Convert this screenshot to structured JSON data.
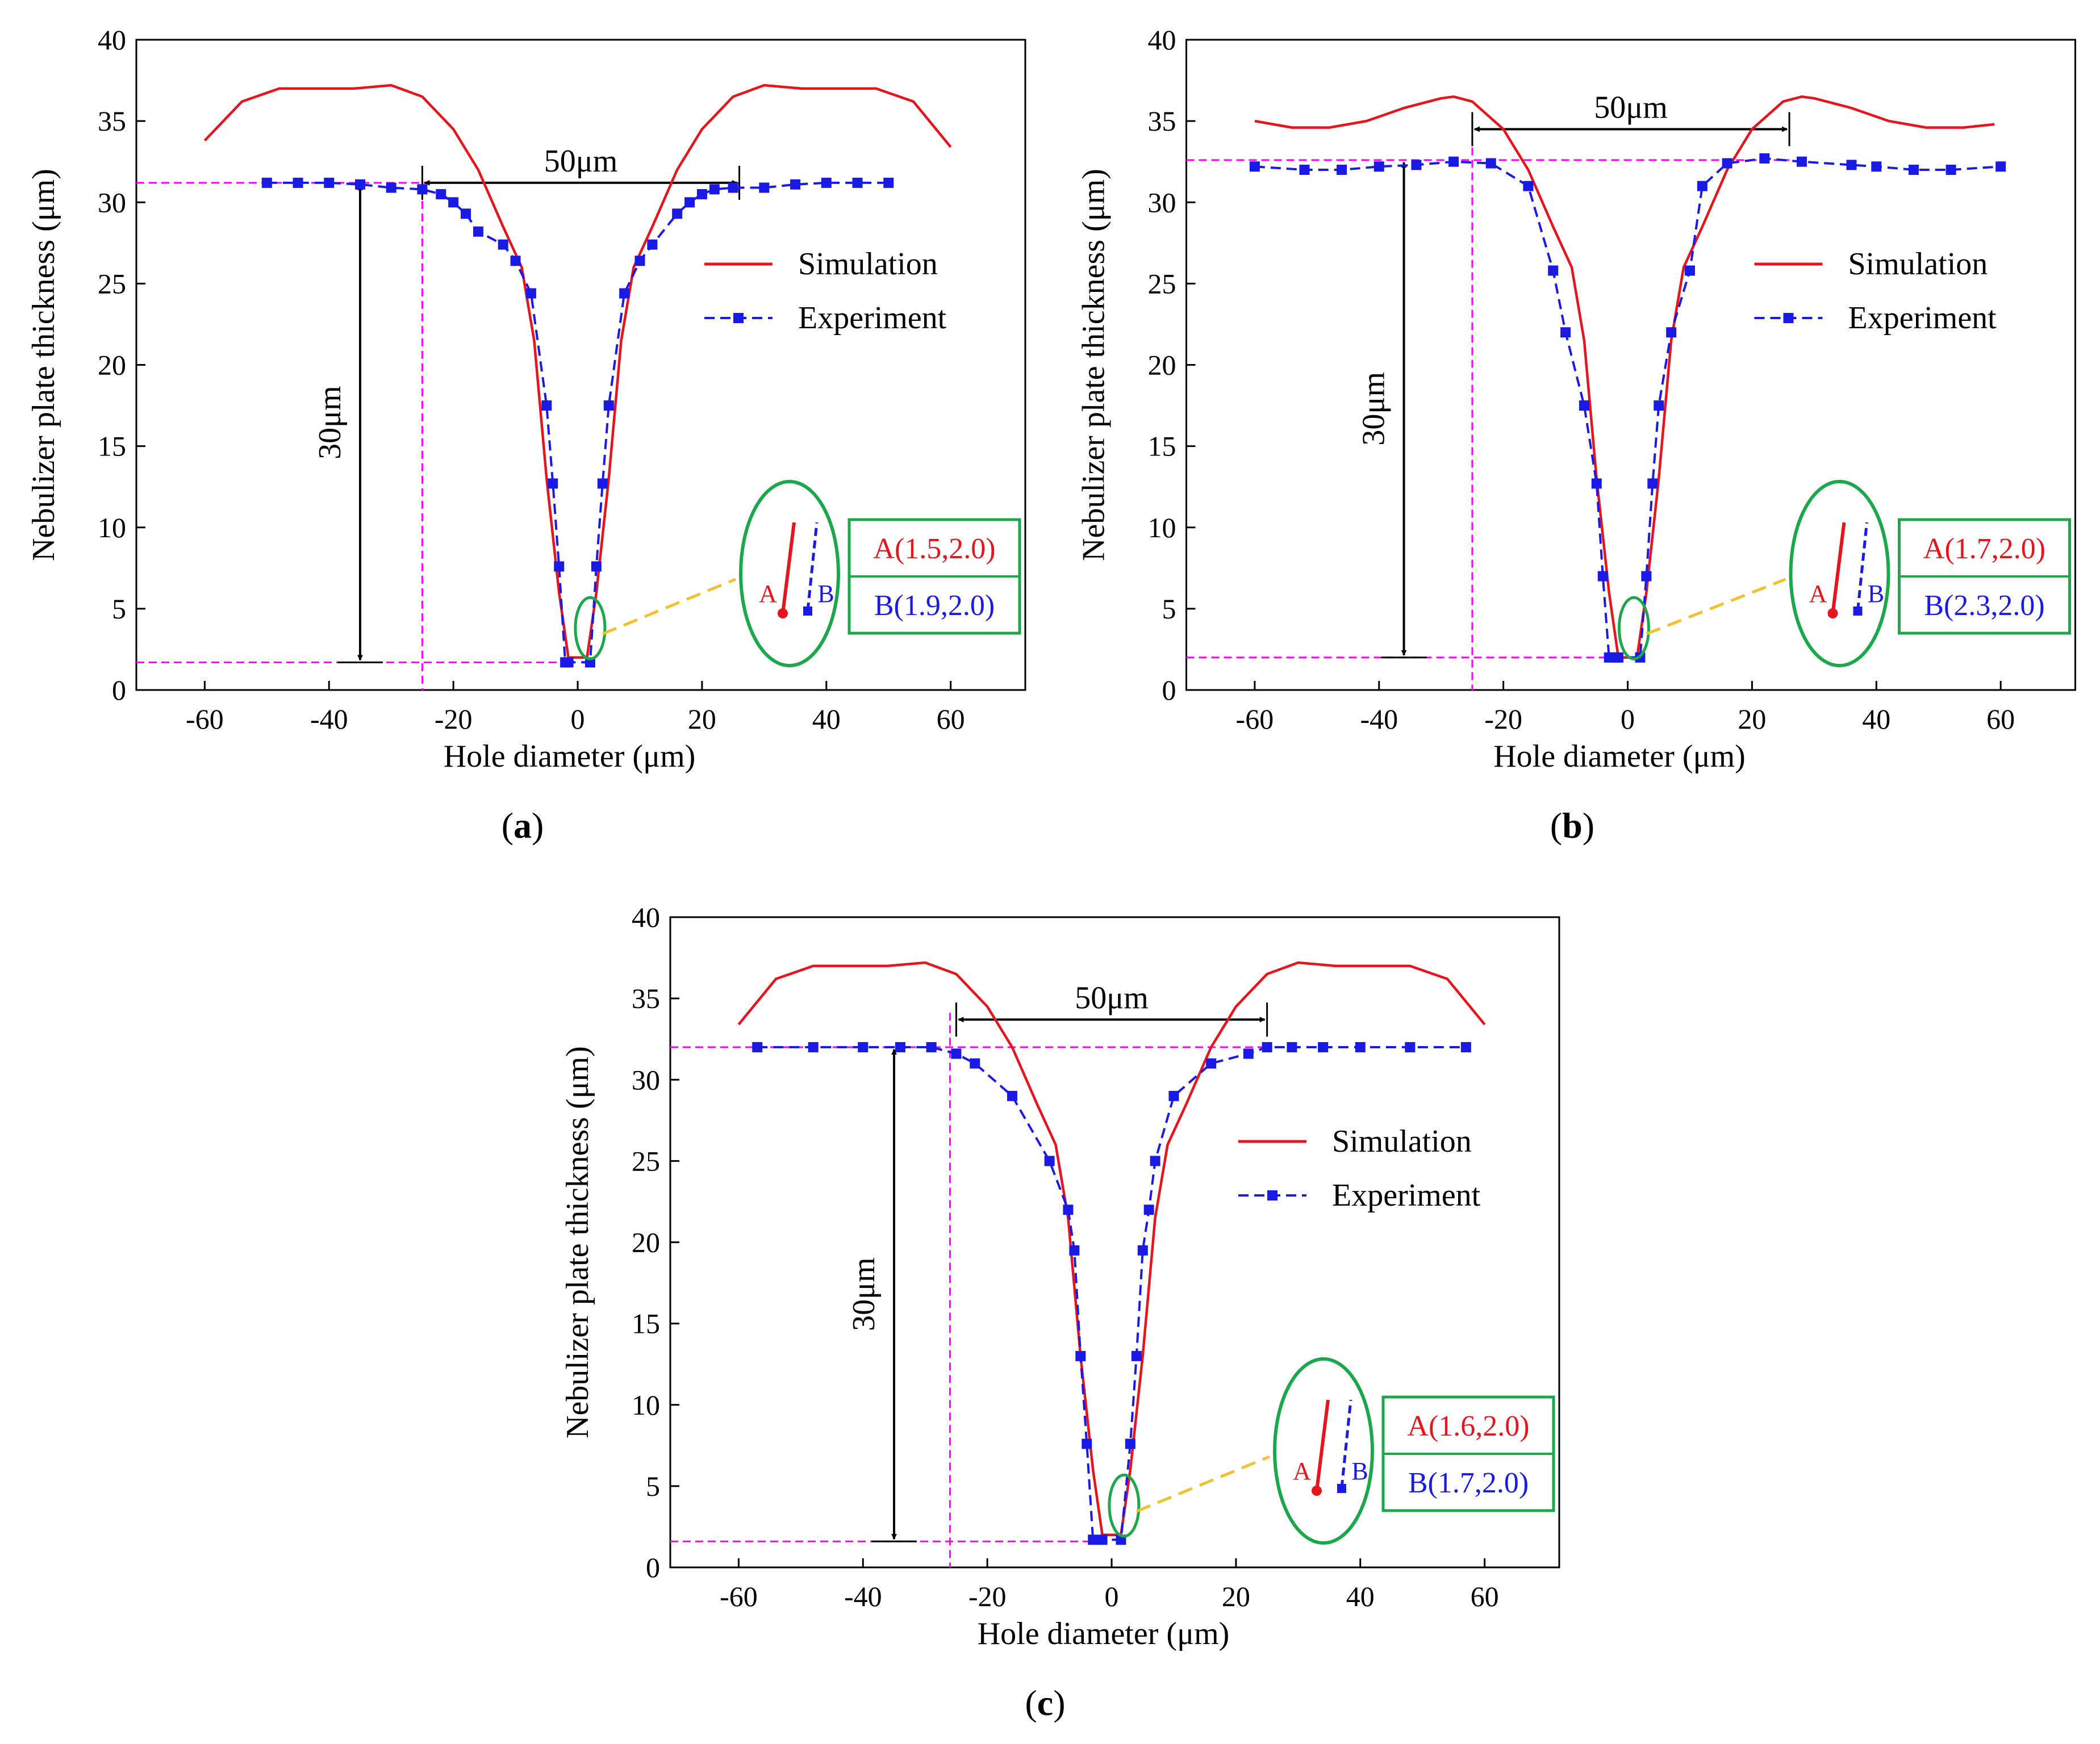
{
  "colors": {
    "simulation": "#e8141c",
    "experiment": "#1a1ae6",
    "guide": "#ff00ff",
    "highlight": "#1aa84a",
    "connector": "#f2c12e",
    "axis": "#000000"
  },
  "icons": {
    "double_arrow": "double-headed-arrow-icon",
    "zoom_ellipse": "zoom-ellipse-icon"
  },
  "chart_data": [
    {
      "id": "a",
      "type": "line",
      "caption": "(a)",
      "caption_prefix": "(",
      "caption_letter": "a",
      "caption_suffix": ")",
      "xlabel": "Hole diameter (μm)",
      "ylabel": "Nebulizer plate thickness (μm)",
      "xlim": [
        -71,
        72
      ],
      "ylim": [
        0,
        40
      ],
      "xticks": [
        -60,
        -40,
        -20,
        0,
        20,
        40,
        60
      ],
      "yticks": [
        0,
        5,
        10,
        15,
        20,
        25,
        30,
        35,
        40
      ],
      "grid": false,
      "legend": {
        "position": "right",
        "simulation": "Simulation",
        "experiment": "Experiment"
      },
      "series": [
        {
          "name": "Simulation",
          "style": "solid",
          "x": [
            -60,
            -54,
            -48,
            -42,
            -36,
            -30,
            -25,
            -20,
            -16,
            -12,
            -9,
            -7,
            -5,
            -3,
            -1.5,
            0,
            1.5,
            3,
            5,
            7,
            9,
            12,
            16,
            20,
            25,
            30,
            36,
            42,
            48,
            54,
            60
          ],
          "y": [
            33.8,
            36.2,
            37,
            37,
            37,
            37.2,
            36.5,
            34.5,
            32,
            28.5,
            26,
            21.5,
            13,
            6,
            2,
            2,
            2,
            6,
            13,
            21.5,
            26,
            28.5,
            32,
            34.5,
            36.5,
            37.2,
            37,
            37,
            37,
            36.2,
            33.4
          ]
        },
        {
          "name": "Experiment",
          "style": "dashed",
          "x": [
            -50,
            -45,
            -40,
            -35,
            -30,
            -25,
            -22,
            -20,
            -18,
            -16,
            -12,
            -10,
            -7.5,
            -5,
            -4,
            -3,
            -2,
            -1.5,
            2,
            3,
            4,
            5,
            7.5,
            10,
            12,
            16,
            18,
            20,
            22,
            25,
            30,
            35,
            40,
            45,
            50
          ],
          "y": [
            31.2,
            31.2,
            31.2,
            31.1,
            30.9,
            30.8,
            30.5,
            30,
            29.3,
            28.2,
            27.4,
            26.4,
            24.4,
            17.5,
            12.7,
            7.6,
            1.7,
            1.7,
            1.7,
            7.6,
            12.7,
            17.5,
            24.4,
            26.4,
            27.4,
            29.3,
            30,
            30.5,
            30.8,
            30.9,
            30.9,
            31.1,
            31.2,
            31.2,
            31.2
          ]
        }
      ],
      "guides": {
        "h_top": 31.2,
        "h_bottom": 1.7,
        "v_x": -25,
        "arrow_x": -35,
        "span_x": [
          -25,
          26
        ],
        "span_y": 31.2
      },
      "annotations": {
        "vertical": "30μm",
        "horizontal": "50μm"
      },
      "zoom": {
        "x": 2,
        "y": 3.8,
        "label_a": "A",
        "label_b": "B"
      },
      "table": {
        "a": "A(1.5,2.0)",
        "b": "B(1.9,2.0)"
      }
    },
    {
      "id": "b",
      "type": "line",
      "caption": "(b)",
      "caption_prefix": "(",
      "caption_letter": "b",
      "caption_suffix": ")",
      "xlabel": "Hole diameter (μm)",
      "ylabel": "Nebulizer plate thickness (μm)",
      "xlim": [
        -71,
        72
      ],
      "ylim": [
        0,
        40
      ],
      "xticks": [
        -60,
        -40,
        -20,
        0,
        20,
        40,
        60
      ],
      "yticks": [
        0,
        5,
        10,
        15,
        20,
        25,
        30,
        35,
        40
      ],
      "grid": false,
      "legend": {
        "position": "right",
        "simulation": "Simulation",
        "experiment": "Experiment"
      },
      "series": [
        {
          "name": "Simulation",
          "style": "solid",
          "x": [
            -60,
            -54,
            -48,
            -42,
            -36,
            -30,
            -28,
            -25,
            -20,
            -16,
            -12,
            -9,
            -7,
            -5,
            -3,
            -1.5,
            0,
            1.5,
            3,
            5,
            7,
            9,
            12,
            16,
            20,
            25,
            28,
            30,
            36,
            42,
            48,
            54,
            59
          ],
          "y": [
            35,
            34.6,
            34.6,
            35,
            35.8,
            36.4,
            36.5,
            36.2,
            34.5,
            32,
            28.5,
            26,
            21.5,
            13,
            6,
            2,
            2,
            2,
            6,
            13,
            21.5,
            26,
            28.5,
            32,
            34.5,
            36.2,
            36.5,
            36.4,
            35.8,
            35,
            34.6,
            34.6,
            34.8
          ]
        },
        {
          "name": "Experiment",
          "style": "dashed",
          "x": [
            -60,
            -52,
            -46,
            -40,
            -34,
            -28,
            -22,
            -16,
            -12,
            -10,
            -7,
            -5,
            -4,
            -3,
            -2,
            -1.5,
            2,
            3,
            4,
            5,
            7,
            10,
            12,
            16,
            22,
            28,
            36,
            40,
            46,
            52,
            60
          ],
          "y": [
            32.2,
            32,
            32,
            32.2,
            32.3,
            32.5,
            32.4,
            31,
            25.8,
            22,
            17.5,
            12.7,
            7,
            2,
            2,
            2,
            2,
            7,
            12.7,
            17.5,
            22,
            25.8,
            31,
            32.4,
            32.7,
            32.5,
            32.3,
            32.2,
            32,
            32,
            32.2
          ]
        }
      ],
      "guides": {
        "h_top": 32.6,
        "h_bottom": 2.0,
        "v_x": -25,
        "arrow_x": -36,
        "span_x": [
          -25,
          26
        ],
        "span_y": 34.5
      },
      "annotations": {
        "vertical": "30μm",
        "horizontal": "50μm"
      },
      "zoom": {
        "x": 1,
        "y": 3.8,
        "label_a": "A",
        "label_b": "B"
      },
      "table": {
        "a": "A(1.7,2.0)",
        "b": "B(2.3,2.0)"
      }
    },
    {
      "id": "c",
      "type": "line",
      "caption": "(c)",
      "caption_prefix": "(",
      "caption_letter": "c",
      "caption_suffix": ")",
      "xlabel": "Hole diameter (μm)",
      "ylabel": "Nebulizer plate thickness (μm)",
      "xlim": [
        -71,
        72
      ],
      "ylim": [
        0,
        40
      ],
      "xticks": [
        -60,
        -40,
        -20,
        0,
        20,
        40,
        60
      ],
      "yticks": [
        0,
        5,
        10,
        15,
        20,
        25,
        30,
        35,
        40
      ],
      "grid": false,
      "legend": {
        "position": "right",
        "simulation": "Simulation",
        "experiment": "Experiment"
      },
      "series": [
        {
          "name": "Simulation",
          "style": "solid",
          "x": [
            -60,
            -54,
            -48,
            -42,
            -36,
            -30,
            -25,
            -20,
            -16,
            -12,
            -9,
            -7,
            -5,
            -3,
            -1.5,
            0,
            1.5,
            3,
            5,
            7,
            9,
            12,
            16,
            20,
            25,
            30,
            36,
            42,
            48,
            54,
            60
          ],
          "y": [
            33.4,
            36.2,
            37,
            37,
            37,
            37.2,
            36.5,
            34.5,
            32,
            28.5,
            26,
            21.5,
            13,
            6,
            2,
            2,
            2,
            6,
            13,
            21.5,
            26,
            28.5,
            32,
            34.5,
            36.5,
            37.2,
            37,
            37,
            37,
            36.2,
            33.4
          ]
        },
        {
          "name": "Experiment",
          "style": "dashed",
          "x": [
            -57,
            -48,
            -40,
            -34,
            -29,
            -25,
            -22,
            -16,
            -10,
            -7,
            -6,
            -5,
            -4,
            -3,
            -1.5,
            1.5,
            3,
            4,
            5,
            6,
            7,
            10,
            16,
            22,
            25,
            29,
            34,
            40,
            48,
            57
          ],
          "y": [
            32,
            32,
            32,
            32,
            32,
            31.6,
            31,
            29,
            25,
            22,
            19.5,
            13,
            7.6,
            1.7,
            1.7,
            1.7,
            7.6,
            13,
            19.5,
            22,
            25,
            29,
            31,
            31.6,
            32,
            32,
            32,
            32,
            32,
            32
          ]
        }
      ],
      "guides": {
        "h_top": 32,
        "h_bottom": 1.6,
        "v_x": -26,
        "arrow_x": -35,
        "span_x": [
          -25,
          25
        ],
        "span_y": 33.7
      },
      "annotations": {
        "vertical": "30μm",
        "horizontal": "50μm"
      },
      "zoom": {
        "x": 2,
        "y": 3.8,
        "label_a": "A",
        "label_b": "B"
      },
      "table": {
        "a": "A(1.6,2.0)",
        "b": "B(1.7,2.0)"
      }
    }
  ]
}
